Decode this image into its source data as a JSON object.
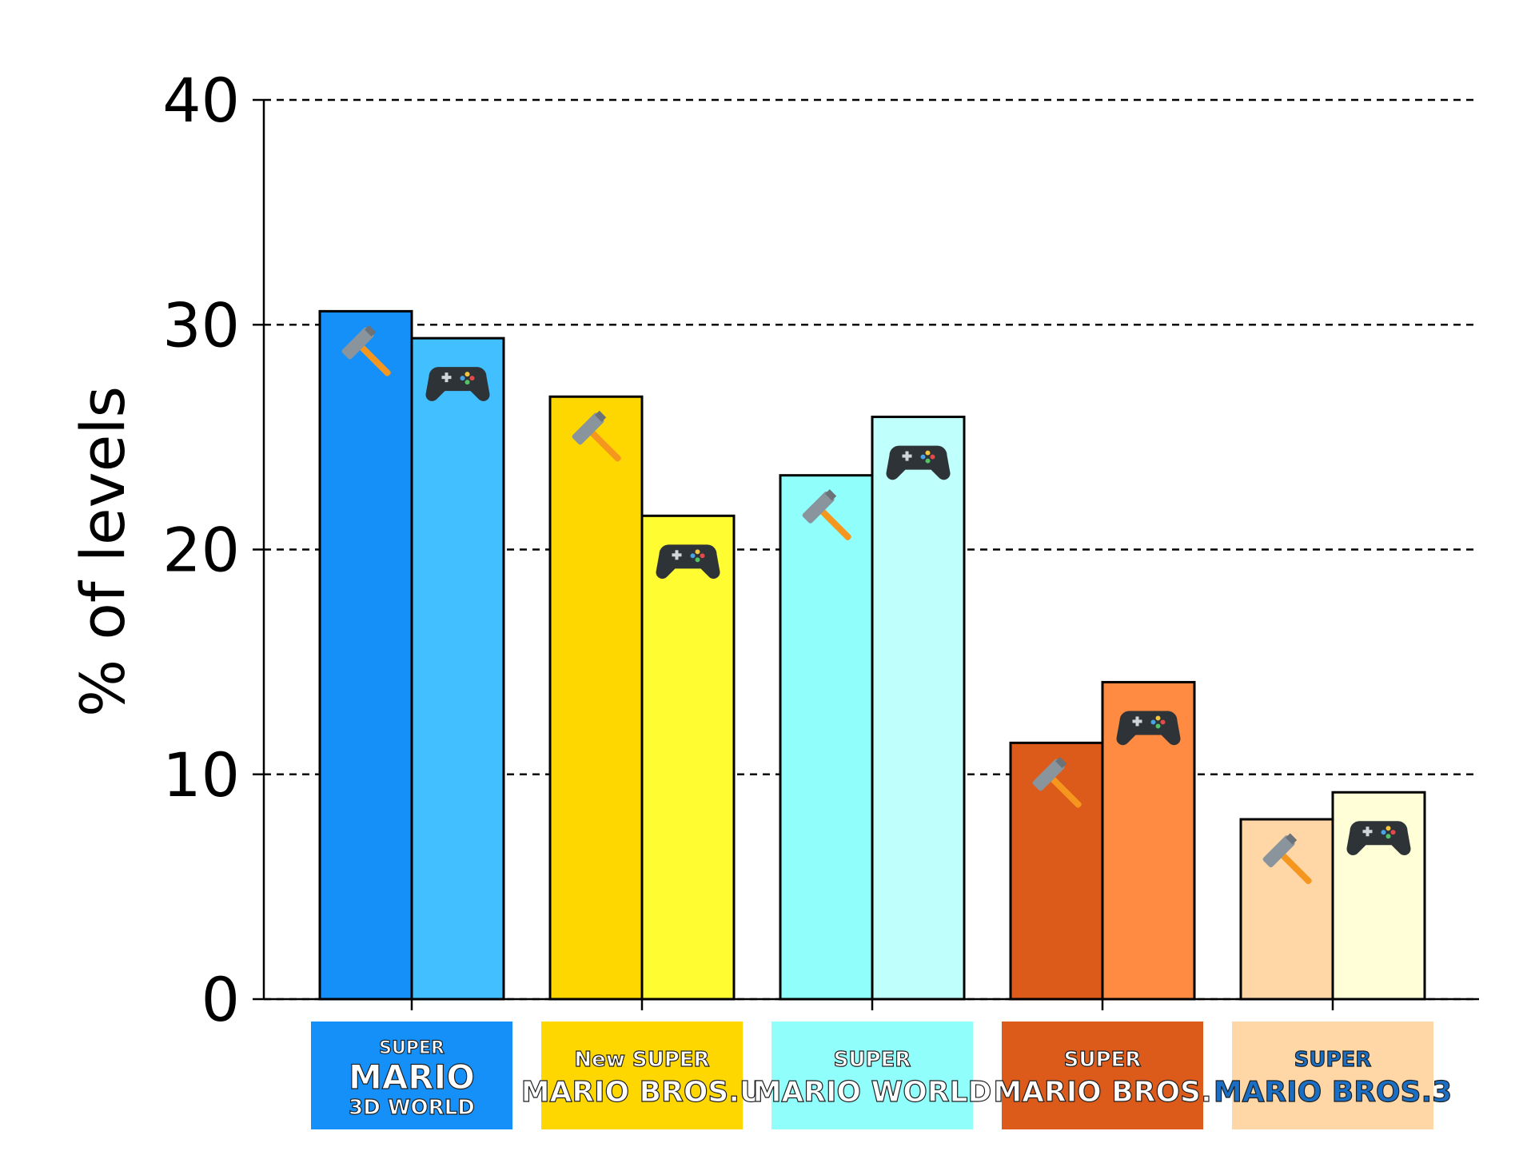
{
  "chart_data": {
    "type": "bar",
    "title": "",
    "xlabel": "",
    "ylabel": "% of levels",
    "ylim": [
      0,
      40
    ],
    "yticks": [
      0,
      10,
      20,
      30,
      40
    ],
    "grid": "horizontal dashed",
    "categories": [
      {
        "logo_lines": [
          "SUPER",
          "MARIO",
          "3D WORLD"
        ],
        "logo_bg": "#1590F8"
      },
      {
        "logo_lines": [
          "New SUPER",
          "MARIO BROS.U"
        ],
        "logo_bg": "#FFD700"
      },
      {
        "logo_lines": [
          "SUPER",
          "MARIO WORLD"
        ],
        "logo_bg": "#90FFFC"
      },
      {
        "logo_lines": [
          "SUPER",
          "MARIO BROS."
        ],
        "logo_bg": "#DC5A1A"
      },
      {
        "logo_lines": [
          "SUPER",
          "MARIO BROS.3"
        ],
        "logo_bg": "#FFD7A6"
      }
    ],
    "series": [
      {
        "icon": "hammer-icon",
        "values": [
          30.6,
          26.8,
          23.3,
          11.4,
          8.0
        ],
        "colors": [
          "#1590F8",
          "#FFD700",
          "#90FFFC",
          "#DC5A1A",
          "#FFD7A6"
        ]
      },
      {
        "icon": "gamepad-icon",
        "values": [
          29.4,
          21.5,
          25.9,
          14.1,
          9.2
        ],
        "colors": [
          "#42BFFF",
          "#FFFC32",
          "#BFFFFC",
          "#FF8B42",
          "#FFFED6"
        ]
      }
    ]
  }
}
